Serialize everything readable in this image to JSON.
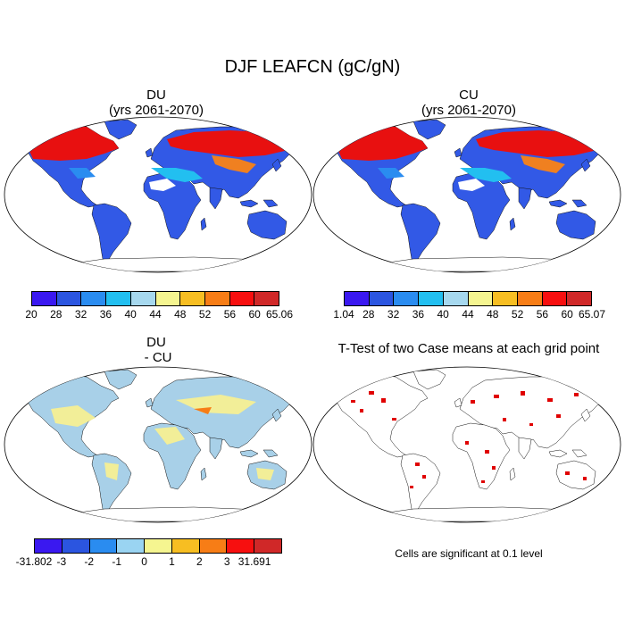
{
  "figure": {
    "title": "DJF LEAFCN (gC/gN)"
  },
  "panels": {
    "du": {
      "title": "DU\n(yrs 2061-2070)"
    },
    "cu": {
      "title": "CU\n(yrs 2061-2070)"
    },
    "diff": {
      "title": "DU\n - CU"
    },
    "ttest": {
      "title": "T-Test of two Case means at each grid point",
      "note": "Cells are significant at 0.1 level"
    }
  },
  "colorbars": {
    "top": {
      "colors": [
        "#3a18f0",
        "#2b55e0",
        "#2a8cf0",
        "#22bff0",
        "#a6d8ee",
        "#f5f590",
        "#f7be22",
        "#f77d16",
        "#f70f0f",
        "#d02828"
      ],
      "du_labels": [
        "20",
        "28",
        "32",
        "36",
        "40",
        "44",
        "48",
        "52",
        "56",
        "60",
        "65.06"
      ],
      "cu_labels": [
        "1.04",
        "28",
        "32",
        "36",
        "40",
        "44",
        "48",
        "52",
        "56",
        "60",
        "65.07"
      ]
    },
    "diff": {
      "colors": [
        "#3a18f0",
        "#2b55e0",
        "#2a8cf0",
        "#9ad4f2",
        "#f5f590",
        "#f7be22",
        "#f77d16",
        "#f70f0f",
        "#d02828"
      ],
      "labels": [
        "-31.802",
        "-3",
        "-2",
        "-1",
        "0",
        "1",
        "2",
        "3",
        "31.691"
      ]
    }
  },
  "legend_colors": {
    "land_cold": "#3060e8",
    "land_hot": "#e81010",
    "diff_base": "#a8d0e8",
    "diff_warm": "#f2ee98",
    "significant": "#e00000"
  }
}
